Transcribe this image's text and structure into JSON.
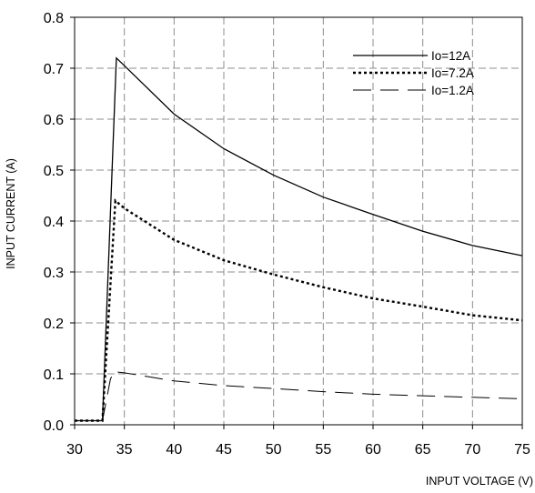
{
  "chart_data": {
    "type": "line",
    "xlabel": "INPUT VOLTAGE (V)",
    "ylabel": "INPUT CURRENT (A)",
    "xlim": [
      30,
      75
    ],
    "ylim": [
      0.0,
      0.8
    ],
    "x_ticks": [
      "30",
      "35",
      "40",
      "45",
      "50",
      "55",
      "60",
      "65",
      "70",
      "75"
    ],
    "y_ticks": [
      "0.0",
      "0.1",
      "0.2",
      "0.3",
      "0.4",
      "0.5",
      "0.6",
      "0.7",
      "0.8"
    ],
    "grid": true,
    "legend_position": "top-right",
    "series": [
      {
        "name": "Io=12A",
        "style": "solid",
        "color": "#000000",
        "points": [
          [
            30,
            0.008
          ],
          [
            32.8,
            0.008
          ],
          [
            34.2,
            0.72
          ],
          [
            35,
            0.705
          ],
          [
            40,
            0.61
          ],
          [
            45,
            0.542
          ],
          [
            50,
            0.49
          ],
          [
            55,
            0.447
          ],
          [
            60,
            0.413
          ],
          [
            65,
            0.38
          ],
          [
            70,
            0.352
          ],
          [
            75,
            0.332
          ]
        ]
      },
      {
        "name": "Io=7.2A",
        "style": "dotted",
        "color": "#000000",
        "points": [
          [
            30,
            0.008
          ],
          [
            32.8,
            0.008
          ],
          [
            34.1,
            0.44
          ],
          [
            35,
            0.425
          ],
          [
            40,
            0.363
          ],
          [
            45,
            0.323
          ],
          [
            50,
            0.295
          ],
          [
            55,
            0.27
          ],
          [
            60,
            0.248
          ],
          [
            65,
            0.232
          ],
          [
            70,
            0.215
          ],
          [
            75,
            0.205
          ]
        ]
      },
      {
        "name": "Io=1.2A",
        "style": "long-dash",
        "color": "#000000",
        "points": [
          [
            30,
            0.008
          ],
          [
            32.8,
            0.008
          ],
          [
            33.6,
            0.09
          ],
          [
            34,
            0.104
          ],
          [
            35,
            0.102
          ],
          [
            40,
            0.086
          ],
          [
            45,
            0.077
          ],
          [
            50,
            0.071
          ],
          [
            55,
            0.065
          ],
          [
            60,
            0.06
          ],
          [
            65,
            0.057
          ],
          [
            70,
            0.054
          ],
          [
            75,
            0.051
          ]
        ]
      }
    ]
  }
}
